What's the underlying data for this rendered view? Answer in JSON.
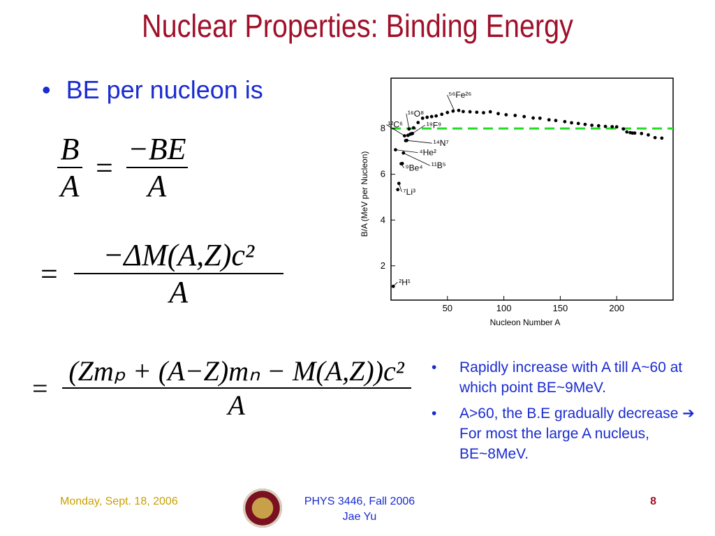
{
  "title": "Nuclear Properties: Binding Energy",
  "bullet_main": "BE per nucleon is",
  "formula1": {
    "lhs_num": "B",
    "lhs_den": "A",
    "eq": "=",
    "rhs_num": "−BE",
    "rhs_den": "A"
  },
  "formula2": {
    "eq": "=",
    "num": "−ΔM(A,Z)c²",
    "den": "A"
  },
  "formula3": {
    "eq": "=",
    "num": "(Zmₚ + (A−Z)mₙ − M(A,Z))c²",
    "den": "A"
  },
  "side_bullets": [
    "Rapidly increase with A till A~60 at which point BE~9MeV.",
    "A>60, the B.E gradually decrease ➔ For most the large A nucleus, BE~8MeV."
  ],
  "footer": {
    "date": "Monday, Sept. 18, 2006",
    "course": "PHYS 3446, Fall 2006",
    "author": "Jae Yu",
    "page": "8"
  },
  "colors": {
    "title": "#a0102a",
    "text": "#1a2bd0",
    "reference_line": "#22dd22",
    "footer_date": "#c9a000",
    "page_number": "#a0102a"
  },
  "chart_data": {
    "type": "scatter",
    "xlabel": "Nucleon Number A",
    "ylabel": "B/A (MeV per Nucleon)",
    "xlim": [
      0,
      250
    ],
    "ylim": [
      0.5,
      10.2
    ],
    "x_ticks": [
      50,
      100,
      150,
      200
    ],
    "y_ticks": [
      2,
      4,
      6,
      8
    ],
    "grid": false,
    "reference_line": {
      "y": 8,
      "style": "dashed"
    },
    "points": [
      [
        2,
        1.1
      ],
      [
        4,
        7.07
      ],
      [
        6,
        5.33
      ],
      [
        7,
        5.6
      ],
      [
        9,
        6.46
      ],
      [
        10,
        6.47
      ],
      [
        11,
        6.93
      ],
      [
        12,
        7.68
      ],
      [
        13,
        7.47
      ],
      [
        14,
        7.48
      ],
      [
        15,
        7.7
      ],
      [
        16,
        7.98
      ],
      [
        17,
        7.75
      ],
      [
        18,
        7.77
      ],
      [
        19,
        7.78
      ],
      [
        20,
        8.03
      ],
      [
        24,
        8.26
      ],
      [
        28,
        8.45
      ],
      [
        32,
        8.49
      ],
      [
        36,
        8.52
      ],
      [
        40,
        8.55
      ],
      [
        45,
        8.62
      ],
      [
        50,
        8.7
      ],
      [
        55,
        8.76
      ],
      [
        60,
        8.79
      ],
      [
        64,
        8.74
      ],
      [
        70,
        8.73
      ],
      [
        76,
        8.71
      ],
      [
        82,
        8.69
      ],
      [
        88,
        8.73
      ],
      [
        95,
        8.65
      ],
      [
        102,
        8.6
      ],
      [
        110,
        8.57
      ],
      [
        118,
        8.52
      ],
      [
        126,
        8.46
      ],
      [
        132,
        8.45
      ],
      [
        140,
        8.38
      ],
      [
        146,
        8.35
      ],
      [
        154,
        8.3
      ],
      [
        160,
        8.25
      ],
      [
        166,
        8.22
      ],
      [
        172,
        8.18
      ],
      [
        178,
        8.14
      ],
      [
        184,
        8.12
      ],
      [
        190,
        8.09
      ],
      [
        196,
        8.08
      ],
      [
        200,
        8.07
      ],
      [
        206,
        7.98
      ],
      [
        209,
        7.85
      ],
      [
        212,
        7.82
      ],
      [
        214,
        7.8
      ],
      [
        216,
        7.8
      ],
      [
        222,
        7.78
      ],
      [
        228,
        7.72
      ],
      [
        234,
        7.6
      ],
      [
        240,
        7.58
      ]
    ],
    "labels": [
      {
        "text": "¹⁶O⁸",
        "x": 16,
        "y": 7.98
      },
      {
        "text": "⁵⁶Fe²⁶",
        "x": 56,
        "y": 8.79
      },
      {
        "text": "¹²C⁶",
        "x": 12,
        "y": 7.68
      },
      {
        "text": "¹⁹F⁹",
        "x": 19,
        "y": 7.78
      },
      {
        "text": "¹⁴N⁷",
        "x": 14,
        "y": 7.48
      },
      {
        "text": "⁴He²",
        "x": 4,
        "y": 7.07
      },
      {
        "text": "¹¹B⁵",
        "x": 11,
        "y": 6.93
      },
      {
        "text": "⁹Be⁴",
        "x": 9,
        "y": 6.46
      },
      {
        "text": "⁷Li³",
        "x": 7,
        "y": 5.6
      },
      {
        "text": "²H¹",
        "x": 2,
        "y": 1.1
      }
    ]
  }
}
